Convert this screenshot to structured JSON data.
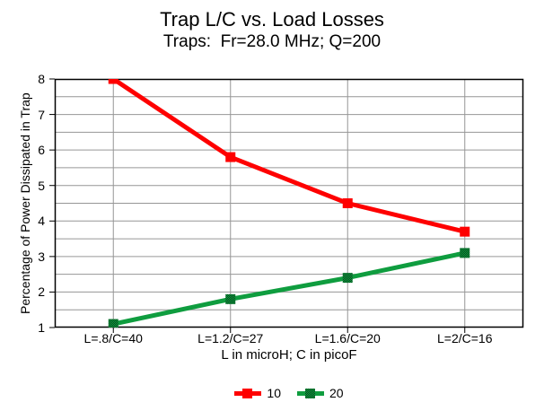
{
  "page": {
    "background": "#ffffff"
  },
  "chart_data": {
    "type": "line",
    "title": "Trap L/C vs. Load Losses",
    "subtitle": "Traps:  Fr=28.0 MHz; Q=200",
    "xlabel": "L in microH; C in picoF",
    "ylabel": "Percentage of Power Dissipated in Trap",
    "categories": [
      "L=.8/C=40",
      "L=1.2/C=27",
      "L=1.6/C=20",
      "L=2/C=16"
    ],
    "series": [
      {
        "name": "10",
        "color": "#fe0000",
        "marker": "filled-square",
        "values": [
          8.0,
          5.8,
          4.5,
          3.7
        ]
      },
      {
        "name": "20",
        "color": "#0f9d3f",
        "marker": "checkered-square",
        "values": [
          1.1,
          1.8,
          2.4,
          3.1
        ]
      }
    ],
    "ylim": [
      1,
      8
    ],
    "y_tick_step": 1,
    "y_grid_step": 0.5,
    "grid": true,
    "legend_position": "bottom",
    "line_width": 5,
    "marker_size": 11,
    "colors": {
      "axis": "#000000",
      "grid": "#969696",
      "text": "#000000",
      "background": "#ffffff",
      "marker_dither": "#05481d"
    }
  }
}
